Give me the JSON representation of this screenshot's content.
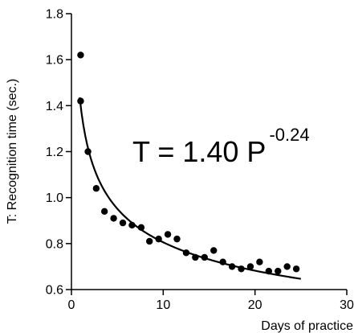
{
  "chart_data": {
    "type": "scatter",
    "xlabel": "Days of practice",
    "ylabel": "T: Recognition time (sec.)",
    "xlim": [
      0,
      30
    ],
    "ylim": [
      0.6,
      1.8
    ],
    "xticks": [
      0,
      10,
      20,
      30
    ],
    "yticks": [
      0.6,
      0.8,
      1.0,
      1.2,
      1.4,
      1.6,
      1.8
    ],
    "xtick_labels": [
      "0",
      "10",
      "20",
      "30"
    ],
    "ytick_labels": [
      "0.6",
      "0.8",
      "1.0",
      "1.2",
      "1.4",
      "1.6",
      "1.8"
    ],
    "grid": false,
    "annotation": {
      "base": "T = 1.40 P",
      "exponent": "-0.24"
    },
    "fit": {
      "coefficient": 1.4,
      "exponent": -0.24,
      "x_range": [
        0.9,
        25
      ]
    },
    "series": [
      {
        "x": [
          1,
          1,
          1.8,
          2.7,
          3.6,
          4.6,
          5.6,
          6.6,
          7.6,
          8.5,
          9.5,
          10.5,
          11.5,
          12.5,
          13.5,
          14.5,
          15.5,
          16.5,
          17.5,
          18.5,
          19.5,
          20.5,
          21.5,
          22.5,
          23.5,
          24.5
        ],
        "y": [
          1.62,
          1.42,
          1.2,
          1.04,
          0.94,
          0.91,
          0.89,
          0.88,
          0.87,
          0.81,
          0.82,
          0.84,
          0.82,
          0.76,
          0.74,
          0.74,
          0.77,
          0.72,
          0.7,
          0.69,
          0.7,
          0.72,
          0.68,
          0.68,
          0.7,
          0.69
        ]
      }
    ]
  }
}
